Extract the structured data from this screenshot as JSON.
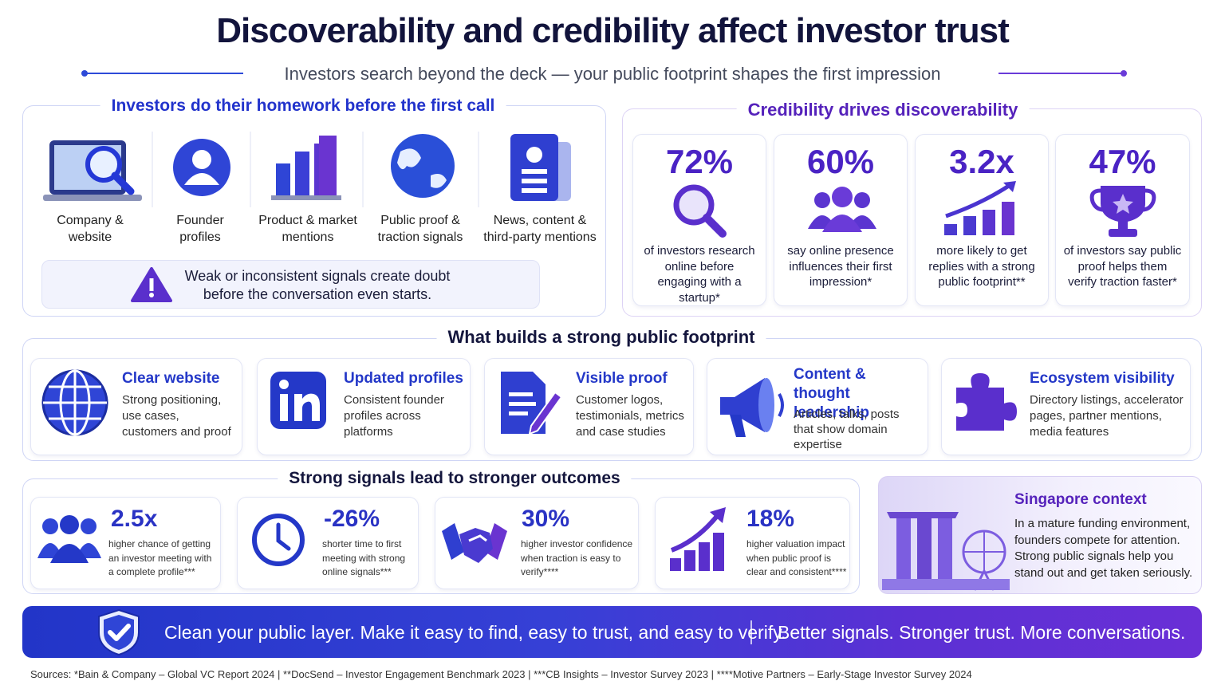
{
  "header": {
    "title": "Discoverability and credibility affect investor trust",
    "subtitle": "Investors search beyond the deck — your public footprint shapes the first impression"
  },
  "homework": {
    "title": "Investors do their homework before the first call",
    "items": [
      "Company & website",
      "Founder profiles",
      "Product & market mentions",
      "Public proof & traction signals",
      "News, content & third-party mentions"
    ],
    "warning": "Weak or inconsistent signals create doubt before the conversation even starts."
  },
  "credibility": {
    "title": "Credibility drives discoverability",
    "stats": [
      {
        "value": "72%",
        "text": "of investors research online before engaging with a startup*"
      },
      {
        "value": "60%",
        "text": "say online presence influences their first impression*"
      },
      {
        "value": "3.2x",
        "text": "more likely to get replies with a strong public footprint**"
      },
      {
        "value": "47%",
        "text": "of investors say public proof helps them verify traction faster*"
      }
    ]
  },
  "footprint": {
    "title": "What builds a strong public footprint",
    "items": [
      {
        "title": "Clear website",
        "text": "Strong positioning, use cases, customers and proof"
      },
      {
        "title": "Updated profiles",
        "text": "Consistent founder profiles across platforms"
      },
      {
        "title": "Visible proof",
        "text": "Customer logos, testimonials, metrics and case studies"
      },
      {
        "title": "Content & thought leadership",
        "text": "Articles, talks, posts that show domain expertise"
      },
      {
        "title": "Ecosystem visibility",
        "text": "Directory listings, accelerator pages, partner mentions, media features"
      }
    ]
  },
  "outcomes": {
    "title": "Strong signals lead to stronger outcomes",
    "stats": [
      {
        "value": "2.5x",
        "text": "higher chance of getting an investor meeting with a complete profile***"
      },
      {
        "value": "-26%",
        "text": "shorter time to first meeting with strong online signals***"
      },
      {
        "value": "30%",
        "text": "higher investor confidence when traction is easy to verify****"
      },
      {
        "value": "18%",
        "text": "higher valuation impact when public proof is clear and consistent****"
      }
    ]
  },
  "singapore": {
    "title": "Singapore context",
    "text": "In a mature funding environment, founders compete for attention. Strong public signals help you stand out and get taken seriously."
  },
  "banner": {
    "left": "Clean your public layer. Make it easy to find, easy to trust, and easy to verify.",
    "right": "Better signals. Stronger trust. More conversations."
  },
  "sources": "Sources: *Bain & Company – Global VC Report 2024 | **DocSend – Investor Engagement Benchmark 2023 | ***CB Insights – Investor Survey 2023 | ****Motive Partners – Early-Stage Investor Survey 2024"
}
